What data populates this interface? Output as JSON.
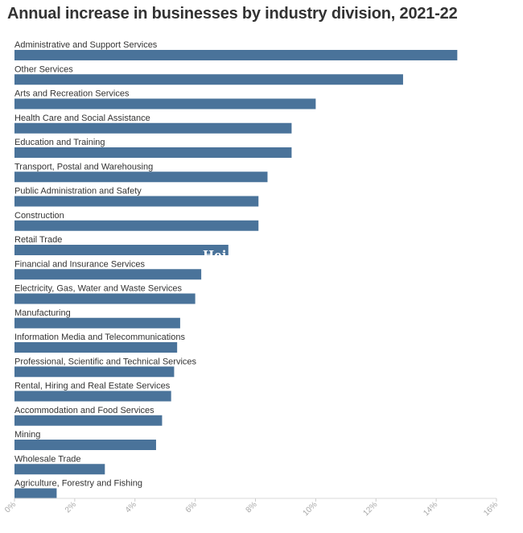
{
  "chart_data": {
    "type": "bar",
    "orientation": "horizontal",
    "title": "Annual increase in businesses by industry division, 2021-22",
    "xlabel": "",
    "ylabel": "",
    "xlim": [
      0,
      16
    ],
    "x_tick_labels": [
      "0%",
      "2%",
      "4%",
      "6%",
      "8%",
      "10%",
      "12%",
      "14%",
      "16%"
    ],
    "x_ticks": [
      0,
      2,
      4,
      6,
      8,
      10,
      12,
      14,
      16
    ],
    "grid": false,
    "legend": "none",
    "bar_color": "#4a739a",
    "categories": [
      "Administrative and Support Services",
      "Other Services",
      "Arts and Recreation Services",
      "Health Care and Social Assistance",
      "Education and Training",
      "Transport, Postal and Warehousing",
      "Public Administration and Safety",
      "Construction",
      "Retail Trade",
      "Financial and Insurance Services",
      "Electricity, Gas, Water and Waste Services",
      "Manufacturing",
      "Information Media and Telecommunications",
      "Professional, Scientific and Technical Services",
      "Rental, Hiring and Real Estate Services",
      "Accommodation and Food Services",
      "Mining",
      "Wholesale Trade",
      "Agriculture, Forestry and Fishing"
    ],
    "values": [
      14.7,
      12.9,
      10.0,
      9.2,
      9.2,
      8.4,
      8.1,
      8.1,
      7.1,
      6.2,
      6.0,
      5.5,
      5.4,
      5.3,
      5.2,
      4.9,
      4.7,
      3.0,
      1.4
    ]
  },
  "watermark": "Hei"
}
